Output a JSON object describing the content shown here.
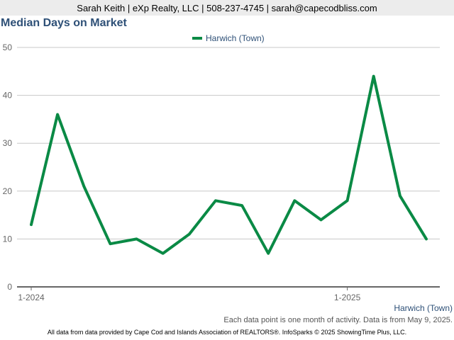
{
  "header": {
    "contact": "Sarah Keith | eXp Realty, LLC | 508-237-4745 | sarah@capecodbliss.com"
  },
  "footer": {
    "series_label": "Harwich (Town)",
    "note": "Each data point is one month of activity. Data is from May 9, 2025.",
    "credit": "All data from data provided by Cape Cod and Islands Association of REALTORS®. InfoSparks © 2025 ShowingTime Plus, LLC."
  },
  "colors": {
    "series": "#0a8a45",
    "title": "#2e5077",
    "grid": "#c8c8c8",
    "axis": "#666666"
  },
  "chart_data": {
    "type": "line",
    "title": "Median Days on Market",
    "legend_position": "top",
    "grid": true,
    "ylim": [
      0,
      50
    ],
    "yticks": [
      0,
      10,
      20,
      30,
      40,
      50
    ],
    "x": [
      "2024-01",
      "2024-02",
      "2024-03",
      "2024-04",
      "2024-05",
      "2024-06",
      "2024-07",
      "2024-08",
      "2024-09",
      "2024-10",
      "2024-11",
      "2024-12",
      "2025-01",
      "2025-02",
      "2025-03",
      "2025-04"
    ],
    "xtick_labels": [
      {
        "x": "2024-01",
        "label": "1-2024"
      },
      {
        "x": "2025-01",
        "label": "1-2025"
      }
    ],
    "series": [
      {
        "name": "Harwich (Town)",
        "values": [
          13,
          36,
          21,
          9,
          10,
          7,
          11,
          18,
          17,
          7,
          18,
          14,
          18,
          44,
          19,
          10
        ]
      }
    ]
  }
}
